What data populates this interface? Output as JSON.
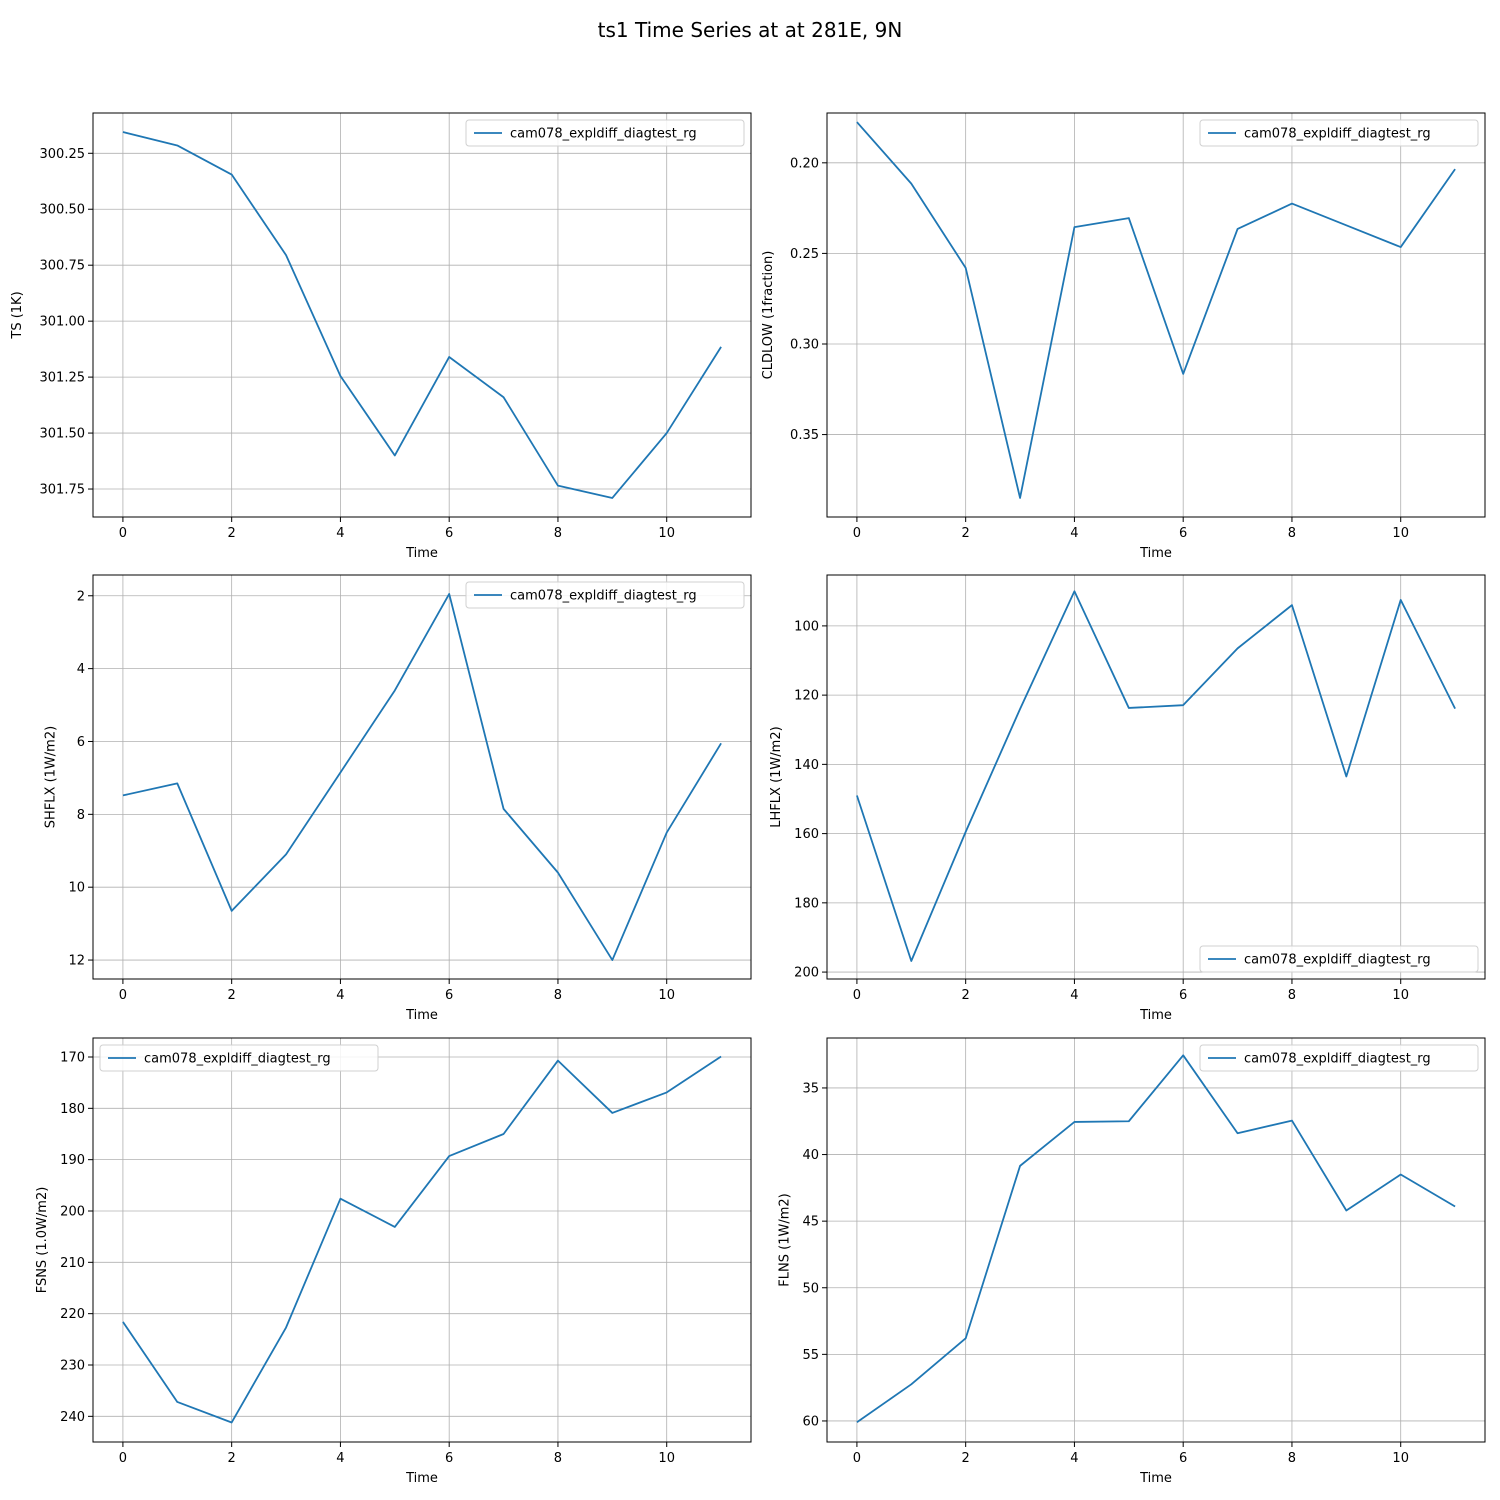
{
  "figure": {
    "title": "ts1 Time Series at at 281E, 9N"
  },
  "style": {
    "line_color": "#1f77b4",
    "grid_color": "#b0b0b0",
    "axis_color": "#000000",
    "background": "#ffffff"
  },
  "chart_data": [
    {
      "type": "line",
      "xlabel": "Time",
      "ylabel": "TS (1K)",
      "y_inverted": true,
      "grid": true,
      "legend_position": "top-right",
      "xlim": [
        -0.55,
        11.55
      ],
      "ylim": [
        301.875,
        300.07
      ],
      "xticks": [
        0,
        2,
        4,
        6,
        8,
        10
      ],
      "xtick_labels": [
        "0",
        "2",
        "4",
        "6",
        "8",
        "10"
      ],
      "yticks": [
        300.25,
        300.5,
        300.75,
        301.0,
        301.25,
        301.5,
        301.75
      ],
      "ytick_labels": [
        "300.25",
        "300.50",
        "300.75",
        "301.00",
        "301.25",
        "301.50",
        "301.75"
      ],
      "series": [
        {
          "name": "cam078_expldiff_diagtest_rg",
          "x": [
            0,
            1,
            2,
            3,
            4,
            5,
            6,
            7,
            8,
            9,
            10,
            11
          ],
          "y": [
            300.155,
            300.215,
            300.345,
            300.705,
            301.245,
            301.6,
            301.16,
            301.34,
            301.735,
            301.79,
            301.5,
            301.115
          ]
        }
      ]
    },
    {
      "type": "line",
      "xlabel": "Time",
      "ylabel": "CLDLOW (1fraction)",
      "y_inverted": true,
      "grid": true,
      "legend_position": "top-right",
      "xlim": [
        -0.55,
        11.55
      ],
      "ylim": [
        0.3955,
        0.1725
      ],
      "xticks": [
        0,
        2,
        4,
        6,
        8,
        10
      ],
      "xtick_labels": [
        "0",
        "2",
        "4",
        "6",
        "8",
        "10"
      ],
      "yticks": [
        0.2,
        0.25,
        0.3,
        0.35
      ],
      "ytick_labels": [
        "0.20",
        "0.25",
        "0.30",
        "0.35"
      ],
      "series": [
        {
          "name": "cam078_expldiff_diagtest_rg",
          "x": [
            0,
            1,
            2,
            3,
            4,
            5,
            6,
            7,
            8,
            9,
            10,
            11
          ],
          "y": [
            0.1775,
            0.2115,
            0.258,
            0.385,
            0.2355,
            0.2305,
            0.3165,
            0.2365,
            0.2225,
            0.2345,
            0.2465,
            0.2035
          ]
        }
      ]
    },
    {
      "type": "line",
      "xlabel": "Time",
      "ylabel": "SHFLX (1W/m2)",
      "y_inverted": true,
      "grid": true,
      "legend_position": "top-right",
      "xlim": [
        -0.55,
        11.55
      ],
      "ylim": [
        12.52,
        1.43
      ],
      "xticks": [
        0,
        2,
        4,
        6,
        8,
        10
      ],
      "xtick_labels": [
        "0",
        "2",
        "4",
        "6",
        "8",
        "10"
      ],
      "yticks": [
        2,
        4,
        6,
        8,
        10,
        12
      ],
      "ytick_labels": [
        "2",
        "4",
        "6",
        "8",
        "10",
        "12"
      ],
      "series": [
        {
          "name": "cam078_expldiff_diagtest_rg",
          "x": [
            0,
            1,
            2,
            3,
            4,
            5,
            6,
            7,
            8,
            9,
            10,
            11
          ],
          "y": [
            7.48,
            7.15,
            10.65,
            9.1,
            6.85,
            4.6,
            1.95,
            7.85,
            9.6,
            12.0,
            8.5,
            6.05
          ]
        }
      ]
    },
    {
      "type": "line",
      "xlabel": "Time",
      "ylabel": "LHFLX (1W/m2)",
      "y_inverted": true,
      "grid": true,
      "legend_position": "bottom-right",
      "xlim": [
        -0.55,
        11.55
      ],
      "ylim": [
        202.0,
        85.3
      ],
      "xticks": [
        0,
        2,
        4,
        6,
        8,
        10
      ],
      "xtick_labels": [
        "0",
        "2",
        "4",
        "6",
        "8",
        "10"
      ],
      "yticks": [
        100,
        120,
        140,
        160,
        180,
        200
      ],
      "ytick_labels": [
        "100",
        "120",
        "140",
        "160",
        "180",
        "200"
      ],
      "series": [
        {
          "name": "cam078_expldiff_diagtest_rg",
          "x": [
            0,
            1,
            2,
            3,
            4,
            5,
            6,
            7,
            8,
            9,
            10,
            11
          ],
          "y": [
            149.0,
            196.8,
            159.5,
            124.0,
            90.0,
            123.7,
            122.9,
            106.5,
            94.0,
            143.5,
            92.5,
            123.9
          ]
        }
      ]
    },
    {
      "type": "line",
      "xlabel": "Time",
      "ylabel": "FSNS (1.0W/m2)",
      "y_inverted": true,
      "grid": true,
      "legend_position": "top-left",
      "xlim": [
        -0.55,
        11.55
      ],
      "ylim": [
        245.0,
        166.3
      ],
      "xticks": [
        0,
        2,
        4,
        6,
        8,
        10
      ],
      "xtick_labels": [
        "0",
        "2",
        "4",
        "6",
        "8",
        "10"
      ],
      "yticks": [
        170,
        180,
        190,
        200,
        210,
        220,
        230,
        240
      ],
      "ytick_labels": [
        "170",
        "180",
        "190",
        "200",
        "210",
        "220",
        "230",
        "240"
      ],
      "series": [
        {
          "name": "cam078_expldiff_diagtest_rg",
          "x": [
            0,
            1,
            2,
            3,
            4,
            5,
            6,
            7,
            8,
            9,
            10,
            11
          ],
          "y": [
            221.6,
            237.2,
            241.2,
            222.7,
            197.6,
            203.1,
            189.3,
            185.0,
            170.7,
            180.9,
            176.9,
            169.9
          ]
        }
      ]
    },
    {
      "type": "line",
      "xlabel": "Time",
      "ylabel": "FLNS (1W/m2)",
      "y_inverted": true,
      "grid": true,
      "legend_position": "top-right",
      "xlim": [
        -0.55,
        11.55
      ],
      "ylim": [
        61.58,
        31.25
      ],
      "xticks": [
        0,
        2,
        4,
        6,
        8,
        10
      ],
      "xtick_labels": [
        "0",
        "2",
        "4",
        "6",
        "8",
        "10"
      ],
      "yticks": [
        35,
        40,
        45,
        50,
        55,
        60
      ],
      "ytick_labels": [
        "35",
        "40",
        "45",
        "50",
        "55",
        "60"
      ],
      "series": [
        {
          "name": "cam078_expldiff_diagtest_rg",
          "x": [
            0,
            1,
            2,
            3,
            4,
            5,
            6,
            7,
            8,
            9,
            10,
            11
          ],
          "y": [
            60.1,
            57.25,
            53.8,
            40.85,
            37.55,
            37.5,
            32.55,
            38.4,
            37.45,
            44.2,
            41.5,
            43.9
          ]
        }
      ]
    }
  ]
}
